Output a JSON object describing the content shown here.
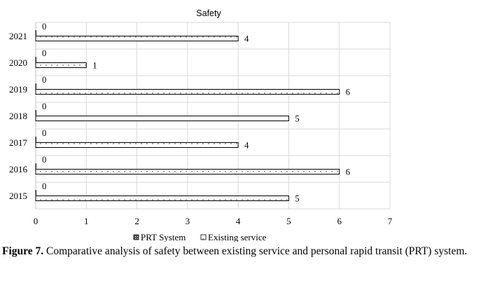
{
  "chart_data": {
    "type": "bar",
    "orientation": "horizontal",
    "title": "Safety",
    "categories": [
      "2021",
      "2020",
      "2019",
      "2018",
      "2017",
      "2016",
      "2015"
    ],
    "series": [
      {
        "name": "PRT System",
        "values": [
          0,
          0,
          0,
          0,
          0,
          0,
          0
        ],
        "pattern": "dark-dotted"
      },
      {
        "name": "Existing service",
        "values": [
          4,
          1,
          6,
          5,
          4,
          6,
          5
        ],
        "pattern": "light-dotted"
      }
    ],
    "xlim": [
      0,
      7
    ],
    "xticks": [
      0,
      1,
      2,
      3,
      4,
      5,
      6,
      7
    ],
    "grid": true,
    "legend_position": "bottom"
  },
  "caption": {
    "label": "Figure 7.",
    "text": " Comparative analysis of safety between existing service and personal rapid transit (PRT) system."
  }
}
